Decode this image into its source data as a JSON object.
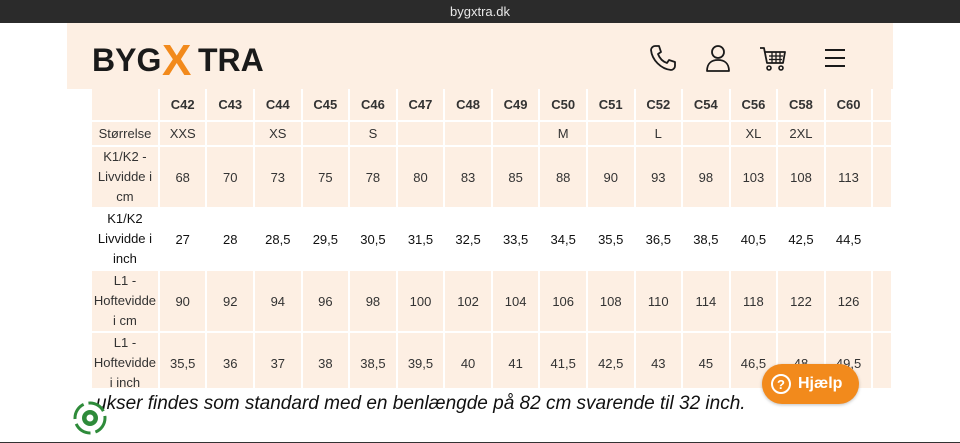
{
  "browser": {
    "url": "bygxtra.dk"
  },
  "header": {
    "logo": {
      "part1": "BYG",
      "part2": "X",
      "part3": "TRA"
    },
    "icons": [
      "phone-icon",
      "user-icon",
      "cart-icon",
      "menu-icon"
    ]
  },
  "table": {
    "headers": [
      "",
      "C42",
      "C43",
      "C44",
      "C45",
      "C46",
      "C47",
      "C48",
      "C49",
      "C50",
      "C51",
      "C52",
      "C54",
      "C56",
      "C58",
      "C60"
    ],
    "rows": [
      {
        "label": "Størrelse",
        "cells": [
          "XXS",
          "",
          "XS",
          "",
          "S",
          "",
          "",
          "",
          "M",
          "",
          "L",
          "",
          "XL",
          "2XL",
          ""
        ]
      },
      {
        "label": "K1/K2 - Livvidde i cm",
        "cells": [
          "68",
          "70",
          "73",
          "75",
          "78",
          "80",
          "83",
          "85",
          "88",
          "90",
          "93",
          "98",
          "103",
          "108",
          "113"
        ]
      },
      {
        "label": "K1/K2 Livvidde i inch",
        "cells": [
          "27",
          "28",
          "28,5",
          "29,5",
          "30,5",
          "31,5",
          "32,5",
          "33,5",
          "34,5",
          "35,5",
          "36,5",
          "38,5",
          "40,5",
          "42,5",
          "44,5"
        ]
      },
      {
        "label": "L1 - Hoftevidde i cm",
        "cells": [
          "90",
          "92",
          "94",
          "96",
          "98",
          "100",
          "102",
          "104",
          "106",
          "108",
          "110",
          "114",
          "118",
          "122",
          "126"
        ]
      },
      {
        "label": "L1 - Hoftevidde i inch",
        "cells": [
          "35,5",
          "36",
          "37",
          "38",
          "38,5",
          "39,5",
          "40",
          "41",
          "41,5",
          "42,5",
          "43",
          "45",
          "46,5",
          "48",
          "49,5"
        ]
      }
    ]
  },
  "footer": {
    "text": "ukser findes som standard med en benlængde på 82 cm svarende til 32 inch."
  },
  "help": {
    "label": "Hjælp"
  },
  "colors": {
    "accent": "#f28a1c",
    "peach": "#fdefe3",
    "logo_dark": "#1a1a1a"
  }
}
